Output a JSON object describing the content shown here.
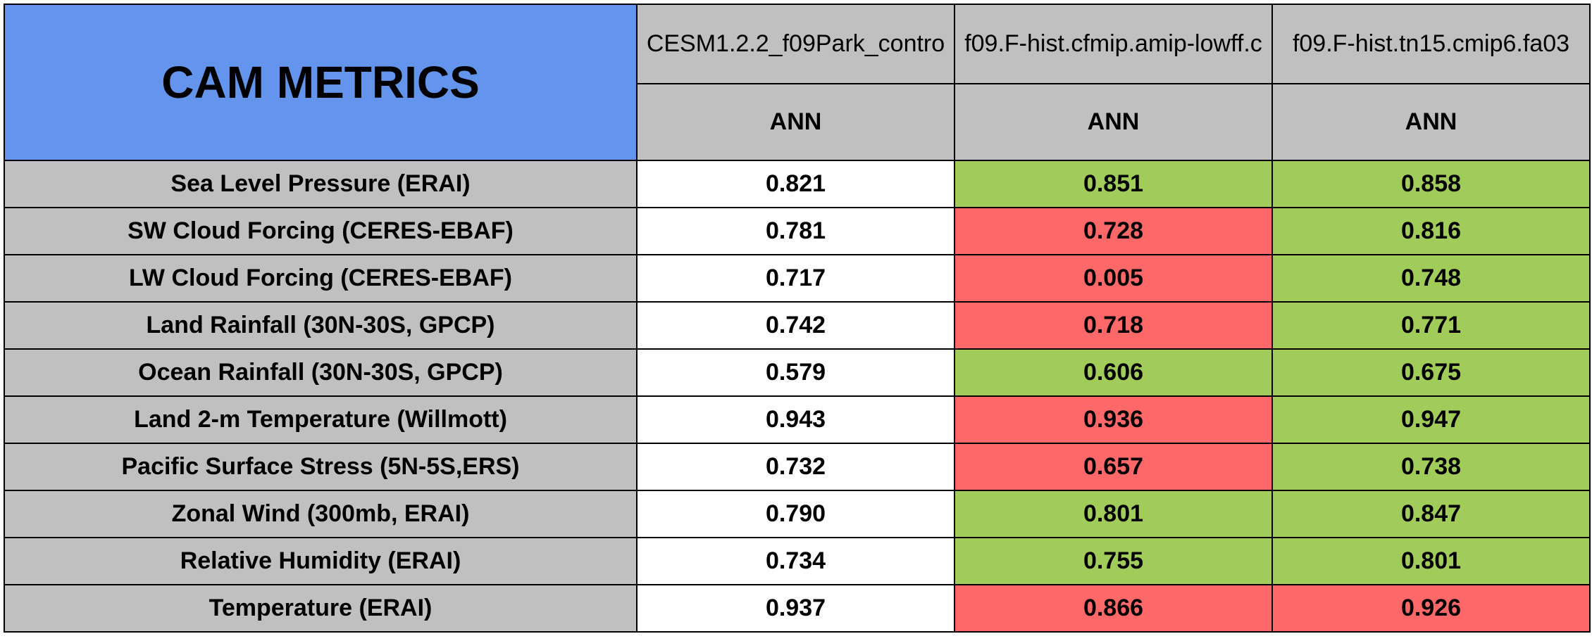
{
  "chart_data": {
    "type": "table",
    "title": "CAM METRICS",
    "columns": [
      {
        "name": "CESM1.2.2_f09Park_contro",
        "season": "ANN"
      },
      {
        "name": "f09.F-hist.cfmip.amip-lowff.c",
        "season": "ANN"
      },
      {
        "name": "f09.F-hist.tn15.cmip6.fa03",
        "season": "ANN"
      }
    ],
    "rows": [
      {
        "metric": "Sea Level Pressure (ERAI)",
        "values": [
          "0.821",
          "0.851",
          "0.858"
        ],
        "colors": [
          "#FFFFFF",
          "#A1CC5A",
          "#A1CC5A"
        ]
      },
      {
        "metric": "SW Cloud Forcing (CERES-EBAF)",
        "values": [
          "0.781",
          "0.728",
          "0.816"
        ],
        "colors": [
          "#FFFFFF",
          "#FF6868",
          "#A1CC5A"
        ]
      },
      {
        "metric": "LW Cloud Forcing (CERES-EBAF)",
        "values": [
          "0.717",
          "0.005",
          "0.748"
        ],
        "colors": [
          "#FFFFFF",
          "#FF6868",
          "#A1CC5A"
        ]
      },
      {
        "metric": "Land Rainfall (30N-30S, GPCP)",
        "values": [
          "0.742",
          "0.718",
          "0.771"
        ],
        "colors": [
          "#FFFFFF",
          "#FF6868",
          "#A1CC5A"
        ]
      },
      {
        "metric": "Ocean Rainfall (30N-30S, GPCP)",
        "values": [
          "0.579",
          "0.606",
          "0.675"
        ],
        "colors": [
          "#FFFFFF",
          "#A1CC5A",
          "#A1CC5A"
        ]
      },
      {
        "metric": "Land 2-m Temperature (Willmott)",
        "values": [
          "0.943",
          "0.936",
          "0.947"
        ],
        "colors": [
          "#FFFFFF",
          "#FF6868",
          "#A1CC5A"
        ]
      },
      {
        "metric": "Pacific Surface Stress (5N-5S,ERS)",
        "values": [
          "0.732",
          "0.657",
          "0.738"
        ],
        "colors": [
          "#FFFFFF",
          "#FF6868",
          "#A1CC5A"
        ]
      },
      {
        "metric": "Zonal Wind (300mb, ERAI)",
        "values": [
          "0.790",
          "0.801",
          "0.847"
        ],
        "colors": [
          "#FFFFFF",
          "#A1CC5A",
          "#A1CC5A"
        ]
      },
      {
        "metric": "Relative Humidity (ERAI)",
        "values": [
          "0.734",
          "0.755",
          "0.801"
        ],
        "colors": [
          "#FFFFFF",
          "#A1CC5A",
          "#A1CC5A"
        ]
      },
      {
        "metric": "Temperature (ERAI)",
        "values": [
          "0.937",
          "0.866",
          "0.926"
        ],
        "colors": [
          "#FFFFFF",
          "#FF6868",
          "#FF6868"
        ]
      }
    ],
    "colors": {
      "title_bg": "#6495ED",
      "header_bg": "#C0C0C0",
      "better": "#A1CC5A",
      "worse": "#FF6868",
      "baseline": "#FFFFFF"
    }
  }
}
